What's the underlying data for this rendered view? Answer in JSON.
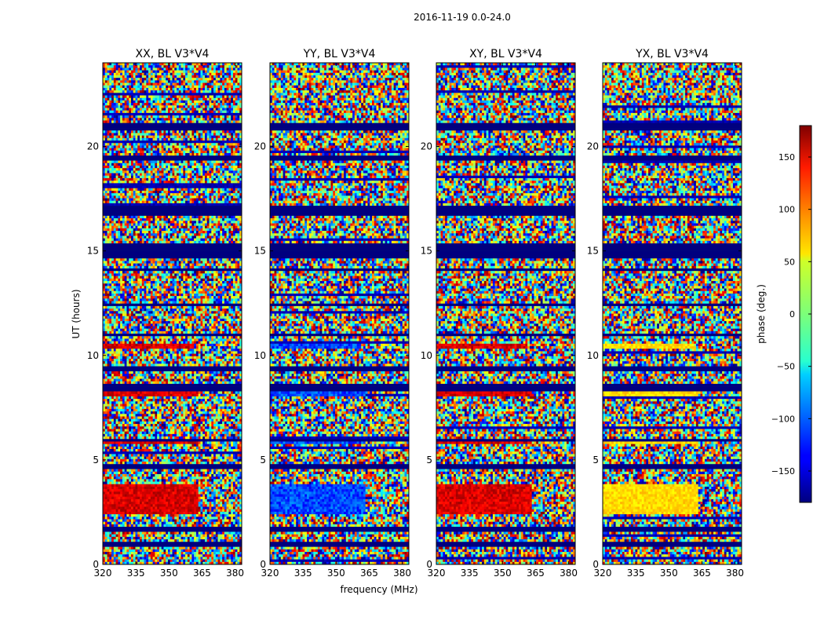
{
  "figure": {
    "suptitle": "2016-11-19 0.0-24.0",
    "xlabel": "frequency (MHz)",
    "ylabel": "UT (hours)"
  },
  "chart_data": {
    "type": "heatmap",
    "x_range": [
      320,
      383
    ],
    "y_range": [
      0,
      24
    ],
    "x_ticks": [
      320,
      335,
      350,
      365,
      380
    ],
    "y_ticks": [
      0,
      5,
      10,
      15,
      20
    ],
    "panels": [
      {
        "title": "XX, BL V3*V4",
        "mode": "red"
      },
      {
        "title": "YY, BL V3*V4",
        "mode": "blue"
      },
      {
        "title": "XY, BL V3*V4",
        "mode": "red"
      },
      {
        "title": "YX, BL V3*V4",
        "mode": "yellow"
      }
    ],
    "colorbar": {
      "label": "phase (deg.)",
      "range": [
        -180,
        180
      ],
      "ticks": [
        150,
        100,
        50,
        0,
        -50,
        -100,
        -150
      ],
      "colormap": "jet"
    },
    "flagged_rows_hours": [
      [
        0.8,
        1.05
      ],
      [
        1.55,
        1.75
      ],
      [
        2.35,
        2.45
      ],
      [
        4.55,
        4.8
      ],
      [
        5.85,
        6.0
      ],
      [
        8.25,
        8.6
      ],
      [
        9.3,
        9.45
      ],
      [
        10.95,
        11.05
      ],
      [
        12.35,
        12.45
      ],
      [
        14.0,
        14.2
      ],
      [
        14.7,
        15.3
      ],
      [
        16.65,
        17.2
      ],
      [
        19.3,
        19.6
      ],
      [
        20.75,
        21.1
      ]
    ],
    "coherent_bands": [
      {
        "start": 10.3,
        "end": 10.6,
        "freq_max": 361
      },
      {
        "start": 8.1,
        "end": 8.45,
        "freq_max": 363
      },
      {
        "start": 3.0,
        "end": 3.8,
        "freq_max": 363
      },
      {
        "start": 2.45,
        "end": 2.95,
        "freq_max": 363
      },
      {
        "start": 5.8,
        "end": 5.95,
        "freq_max": 363
      }
    ]
  }
}
